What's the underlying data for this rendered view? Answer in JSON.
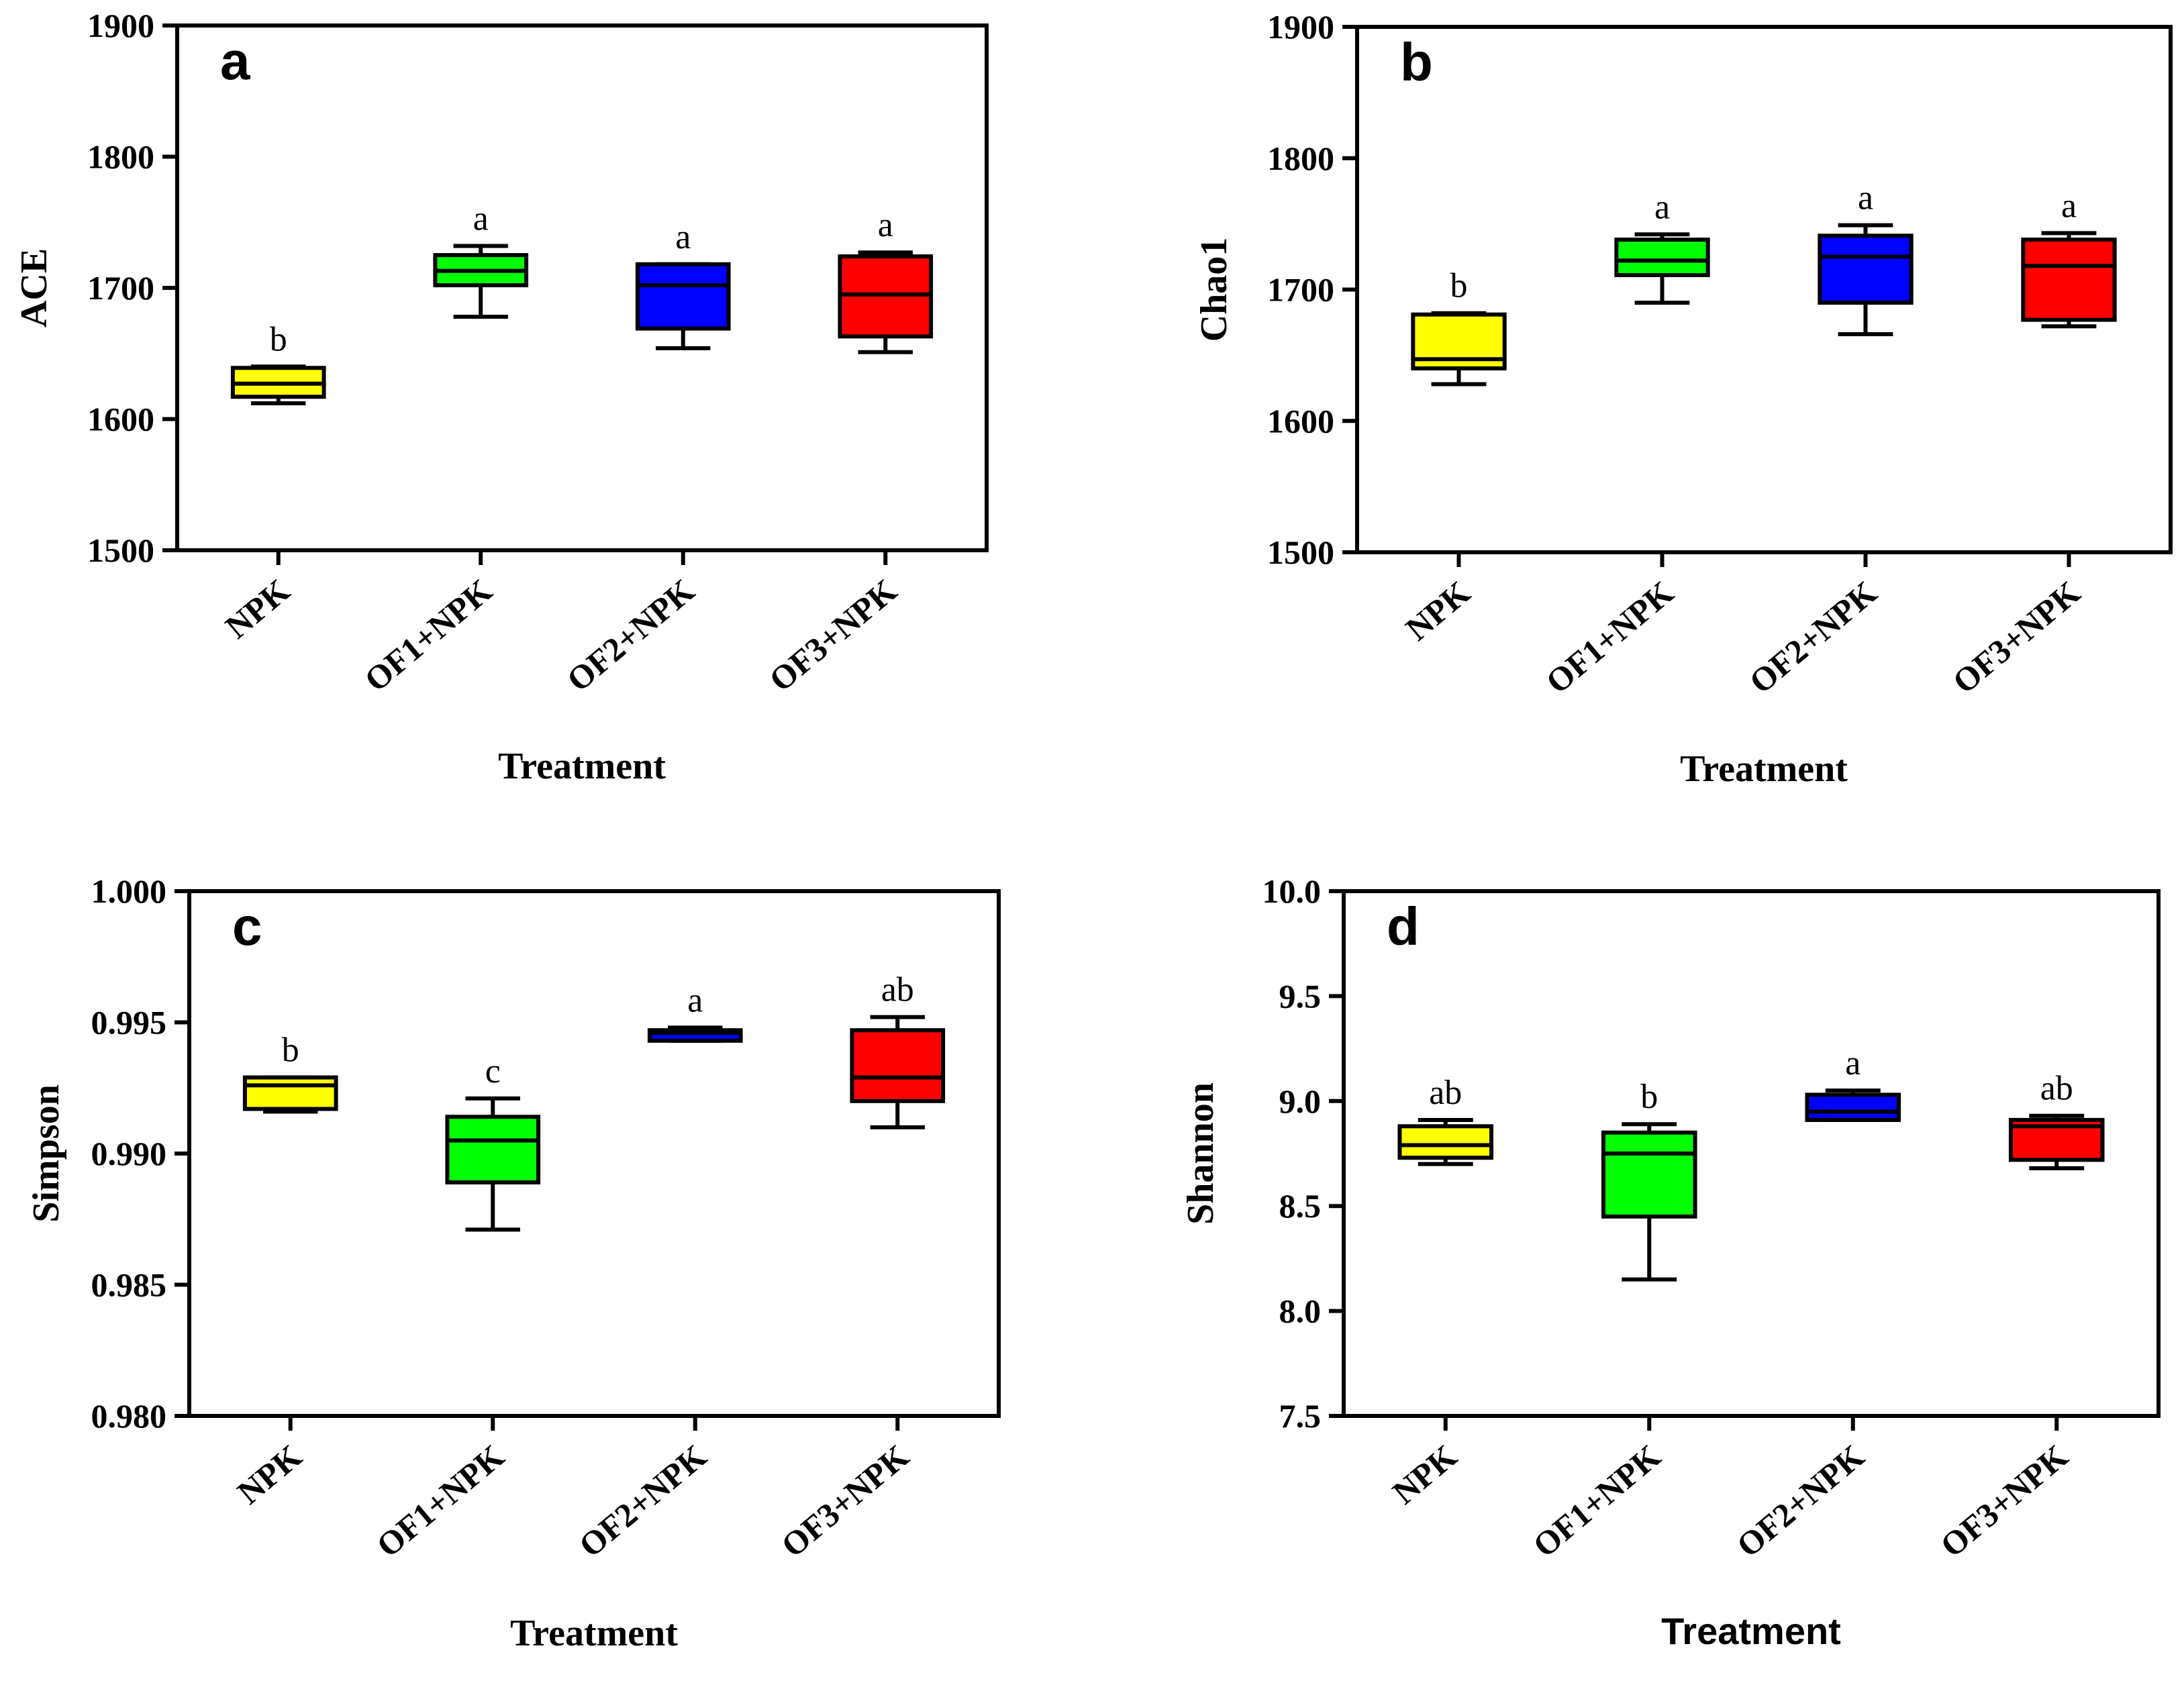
{
  "colors": {
    "NPK": "#ffff00",
    "OF1+NPK": "#00ff00",
    "OF2+NPK": "#0000ff",
    "OF3+NPK": "#ff0000",
    "stroke": "#000000"
  },
  "chart_data": [
    {
      "type": "box",
      "panel": "a",
      "title": "",
      "xlabel": "Treatment",
      "ylabel": "ACE",
      "ylim": [
        1500,
        1900
      ],
      "yticks": [
        "1500",
        "1600",
        "1700",
        "1800",
        "1900"
      ],
      "categories": [
        "NPK",
        "OF1+NPK",
        "OF2+NPK",
        "OF3+NPK"
      ],
      "boxes": [
        {
          "min": 1612,
          "q1": 1617,
          "median": 1627,
          "q3": 1639,
          "max": 1640,
          "sig": "b"
        },
        {
          "min": 1678,
          "q1": 1702,
          "median": 1713,
          "q3": 1725,
          "max": 1732,
          "sig": "a"
        },
        {
          "min": 1654,
          "q1": 1669,
          "median": 1702,
          "q3": 1718,
          "max": 1718,
          "sig": "a"
        },
        {
          "min": 1651,
          "q1": 1663,
          "median": 1695,
          "q3": 1724,
          "max": 1727,
          "sig": "a"
        }
      ]
    },
    {
      "type": "box",
      "panel": "b",
      "title": "",
      "xlabel": "Treatment",
      "ylabel": "Chao1",
      "ylim": [
        1500,
        1900
      ],
      "yticks": [
        "1500",
        "1600",
        "1700",
        "1800",
        "1900"
      ],
      "categories": [
        "NPK",
        "OF1+NPK",
        "OF2+NPK",
        "OF3+NPK"
      ],
      "boxes": [
        {
          "min": 1628,
          "q1": 1640,
          "median": 1647,
          "q3": 1681,
          "max": 1682,
          "sig": "b"
        },
        {
          "min": 1690,
          "q1": 1711,
          "median": 1722,
          "q3": 1738,
          "max": 1742,
          "sig": "a"
        },
        {
          "min": 1666,
          "q1": 1690,
          "median": 1725,
          "q3": 1741,
          "max": 1749,
          "sig": "a"
        },
        {
          "min": 1672,
          "q1": 1677,
          "median": 1718,
          "q3": 1738,
          "max": 1743,
          "sig": "a"
        }
      ]
    },
    {
      "type": "box",
      "panel": "c",
      "title": "",
      "xlabel": "Treatment",
      "ylabel": "Simpson",
      "ylim": [
        0.98,
        1.0
      ],
      "yticks": [
        "0.980",
        "0.985",
        "0.990",
        "0.995",
        "1.000"
      ],
      "categories": [
        "NPK",
        "OF1+NPK",
        "OF2+NPK",
        "OF3+NPK"
      ],
      "boxes": [
        {
          "min": 0.9916,
          "q1": 0.9917,
          "median": 0.9926,
          "q3": 0.9929,
          "max": 0.9929,
          "sig": "b"
        },
        {
          "min": 0.9871,
          "q1": 0.9889,
          "median": 0.9905,
          "q3": 0.9914,
          "max": 0.9921,
          "sig": "c"
        },
        {
          "min": 0.9943,
          "q1": 0.9943,
          "median": 0.9946,
          "q3": 0.9947,
          "max": 0.9948,
          "sig": "a"
        },
        {
          "min": 0.991,
          "q1": 0.992,
          "median": 0.9929,
          "q3": 0.9947,
          "max": 0.9952,
          "sig": "ab"
        }
      ]
    },
    {
      "type": "box",
      "panel": "d",
      "title": "",
      "xlabel": "Treatment",
      "ylabel": "Shannon",
      "ylim": [
        7.5,
        10.0
      ],
      "yticks": [
        "7.5",
        "8.0",
        "8.5",
        "9.0",
        "9.5",
        "10.0"
      ],
      "categories": [
        "NPK",
        "OF1+NPK",
        "OF2+NPK",
        "OF3+NPK"
      ],
      "boxes": [
        {
          "min": 8.7,
          "q1": 8.73,
          "median": 8.79,
          "q3": 8.88,
          "max": 8.91,
          "sig": "ab"
        },
        {
          "min": 8.15,
          "q1": 8.45,
          "median": 8.75,
          "q3": 8.85,
          "max": 8.89,
          "sig": "b"
        },
        {
          "min": 8.91,
          "q1": 8.91,
          "median": 8.95,
          "q3": 9.03,
          "max": 9.05,
          "sig": "a"
        },
        {
          "min": 8.68,
          "q1": 8.72,
          "median": 8.88,
          "q3": 8.91,
          "max": 8.93,
          "sig": "ab"
        }
      ]
    }
  ]
}
